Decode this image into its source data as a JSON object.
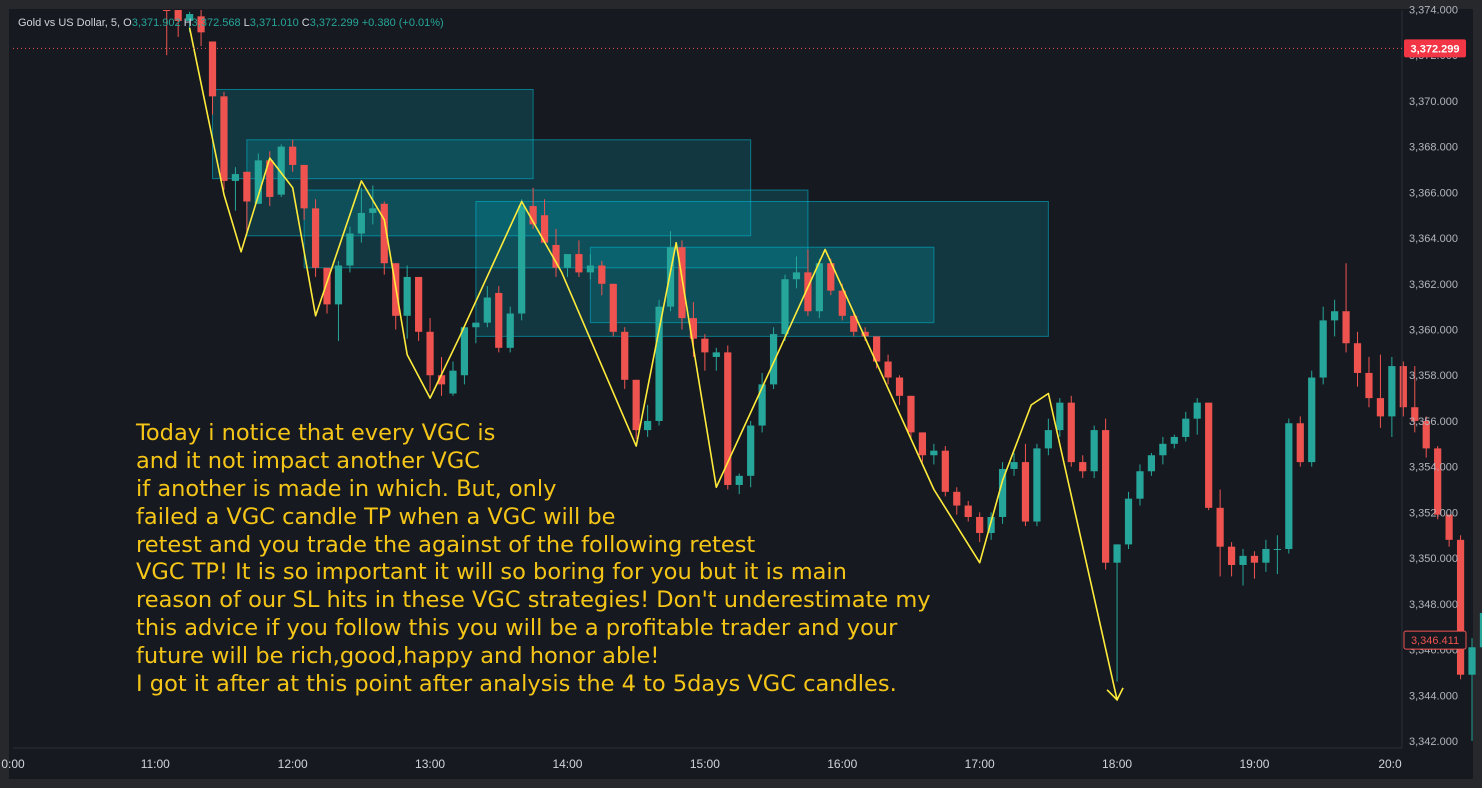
{
  "header": {
    "symbol": "Gold vs US Dollar, 5,",
    "open_label": "O",
    "open": "3,371.902",
    "high_label": "H",
    "high": "3,372.568",
    "low_label": "L",
    "low": "3,371.010",
    "close_label": "C",
    "close": "3,372.299",
    "change": "+0.380 (+0.01%)"
  },
  "colors": {
    "up": "#26a69a",
    "down": "#ef5350",
    "zigzag": "#ffeb3b",
    "zone": "#00bcd4",
    "background": "#161a20",
    "annotation": "#f5c518"
  },
  "price_tags": {
    "current": "3,372.299",
    "marker": "3,346.411"
  },
  "annotation": {
    "lines": [
      "Today i notice that every VGC is",
      "and it not impact another VGC",
      "if another is made in which. But, only",
      "failed a VGC candle TP when a VGC will be",
      "retest and you trade the against of the following retest",
      "VGC TP! It is so important it will so boring for you but it is main",
      "reason of our SL hits in these VGC strategies! Don't underestimate my",
      "this advice if you follow this you will be a profitable trader and your",
      "future will be rich,good,happy and honor able!",
      "I got it after at this point after analysis the 4 to 5days VGC candles."
    ]
  },
  "chart_data": {
    "type": "candlestick",
    "symbol": "Gold vs US Dollar",
    "timeframe": "5",
    "x_ticks": [
      "0:00",
      "11:00",
      "12:00",
      "13:00",
      "14:00",
      "15:00",
      "16:00",
      "17:00",
      "18:00",
      "19:00",
      "20:0"
    ],
    "y_ticks": [
      "3,342.000",
      "3,344.000",
      "3,346.000",
      "3,348.000",
      "3,350.000",
      "3,352.000",
      "3,354.000",
      "3,356.000",
      "3,358.000",
      "3,360.000",
      "3,362.000",
      "3,364.000",
      "3,366.000",
      "3,368.000",
      "3,370.000",
      "3,372.000",
      "3,374.000"
    ],
    "ylim": [
      3341.4,
      3374.3
    ],
    "xlim": [
      -1.0,
      110.0
    ],
    "x_unit": "5-minute bars, bar 0 = 10:00",
    "candles": [
      [
        13,
        3374.5,
        3375.2,
        3372.0,
        3374.0
      ],
      [
        14,
        3374.0,
        3374.4,
        3372.8,
        3373.5
      ],
      [
        15,
        3373.5,
        3373.9,
        3373.0,
        3373.8
      ],
      [
        16,
        3373.7,
        3374.0,
        3372.4,
        3373.0
      ],
      [
        17,
        3372.6,
        3372.6,
        3369.4,
        3370.2
      ],
      [
        18,
        3370.2,
        3370.4,
        3366.1,
        3366.5
      ],
      [
        19,
        3366.5,
        3367.1,
        3365.2,
        3366.8
      ],
      [
        20,
        3366.9,
        3366.9,
        3364.3,
        3365.6
      ],
      [
        21,
        3365.5,
        3367.7,
        3365.5,
        3367.4
      ],
      [
        22,
        3367.4,
        3367.8,
        3365.4,
        3365.8
      ],
      [
        23,
        3365.9,
        3368.1,
        3365.8,
        3368.0
      ],
      [
        24,
        3368.0,
        3368.3,
        3366.9,
        3367.2
      ],
      [
        25,
        3367.2,
        3367.2,
        3364.8,
        3365.3
      ],
      [
        26,
        3365.3,
        3365.7,
        3362.3,
        3362.7
      ],
      [
        27,
        3362.7,
        3362.7,
        3360.7,
        3361.1
      ],
      [
        28,
        3361.1,
        3363.0,
        3359.5,
        3362.8
      ],
      [
        29,
        3362.8,
        3364.5,
        3362.5,
        3364.2
      ],
      [
        30,
        3364.2,
        3366.2,
        3363.8,
        3365.1
      ],
      [
        31,
        3365.1,
        3366.3,
        3364.6,
        3365.3
      ],
      [
        32,
        3365.5,
        3365.6,
        3362.4,
        3362.9
      ],
      [
        33,
        3362.9,
        3362.9,
        3360.0,
        3360.6
      ],
      [
        34,
        3360.6,
        3362.8,
        3359.6,
        3362.3
      ],
      [
        35,
        3362.3,
        3362.3,
        3359.5,
        3359.9
      ],
      [
        36,
        3359.9,
        3360.5,
        3357.3,
        3358.0
      ],
      [
        37,
        3358.0,
        3358.8,
        3357.1,
        3357.6
      ],
      [
        38,
        3357.2,
        3358.6,
        3357.1,
        3358.2
      ],
      [
        39,
        3358.0,
        3360.1,
        3357.6,
        3360.1
      ],
      [
        40,
        3360.1,
        3360.3,
        3359.4,
        3360.3
      ],
      [
        41,
        3360.3,
        3361.9,
        3360.1,
        3361.4
      ],
      [
        42,
        3361.6,
        3361.9,
        3359.0,
        3359.2
      ],
      [
        43,
        3359.2,
        3361.0,
        3359.0,
        3360.7
      ],
      [
        44,
        3360.7,
        3365.7,
        3360.4,
        3365.4
      ],
      [
        45,
        3365.4,
        3366.2,
        3364.4,
        3364.6
      ],
      [
        46,
        3365.0,
        3365.7,
        3363.8,
        3363.8
      ],
      [
        47,
        3363.7,
        3364.4,
        3362.3,
        3362.7
      ],
      [
        48,
        3362.7,
        3363.3,
        3362.3,
        3363.3
      ],
      [
        49,
        3363.3,
        3363.9,
        3362.3,
        3362.5
      ],
      [
        50,
        3362.5,
        3363.3,
        3362.2,
        3362.8
      ],
      [
        51,
        3362.8,
        3363.0,
        3361.5,
        3362.0
      ],
      [
        52,
        3362.0,
        3362.0,
        3359.7,
        3359.9
      ],
      [
        53,
        3359.9,
        3360.1,
        3357.4,
        3357.8
      ],
      [
        54,
        3357.8,
        3357.8,
        3355.2,
        3355.6
      ],
      [
        55,
        3355.6,
        3356.7,
        3355.3,
        3356.0
      ],
      [
        56,
        3356.0,
        3361.3,
        3355.8,
        3361.0
      ],
      [
        57,
        3361.0,
        3364.3,
        3360.8,
        3363.6
      ],
      [
        58,
        3363.6,
        3363.9,
        3360.0,
        3360.5
      ],
      [
        59,
        3360.5,
        3361.2,
        3358.8,
        3359.6
      ],
      [
        60,
        3359.6,
        3359.8,
        3358.2,
        3359.0
      ],
      [
        61,
        3358.8,
        3359.2,
        3358.2,
        3359.0
      ],
      [
        62,
        3359.0,
        3359.3,
        3353.0,
        3353.2
      ],
      [
        63,
        3353.2,
        3353.7,
        3352.8,
        3353.6
      ],
      [
        64,
        3353.6,
        3356.0,
        3353.1,
        3355.8
      ],
      [
        65,
        3355.8,
        3358.1,
        3355.5,
        3357.6
      ],
      [
        66,
        3357.6,
        3360.1,
        3357.4,
        3359.8
      ],
      [
        67,
        3359.8,
        3362.4,
        3359.5,
        3362.2
      ],
      [
        68,
        3362.2,
        3363.2,
        3361.8,
        3362.5
      ],
      [
        69,
        3362.5,
        3363.5,
        3360.6,
        3360.8
      ],
      [
        70,
        3360.8,
        3363.1,
        3360.5,
        3362.9
      ],
      [
        71,
        3362.9,
        3363.1,
        3361.5,
        3361.7
      ],
      [
        72,
        3361.7,
        3362.0,
        3360.4,
        3360.6
      ],
      [
        73,
        3360.6,
        3360.8,
        3359.7,
        3359.9
      ],
      [
        74,
        3359.9,
        3360.1,
        3359.5,
        3359.7
      ],
      [
        75,
        3359.7,
        3359.7,
        3358.3,
        3358.6
      ],
      [
        76,
        3358.6,
        3358.9,
        3357.6,
        3357.9
      ],
      [
        77,
        3357.9,
        3358.0,
        3356.7,
        3357.1
      ],
      [
        78,
        3357.1,
        3357.1,
        3355.2,
        3355.5
      ],
      [
        79,
        3355.5,
        3355.5,
        3354.2,
        3354.5
      ],
      [
        80,
        3354.5,
        3355.0,
        3354.1,
        3354.7
      ],
      [
        81,
        3354.7,
        3354.9,
        3352.7,
        3352.9
      ],
      [
        82,
        3352.9,
        3353.1,
        3351.9,
        3352.3
      ],
      [
        83,
        3352.3,
        3352.5,
        3351.6,
        3351.8
      ],
      [
        84,
        3351.8,
        3352.0,
        3350.7,
        3351.1
      ],
      [
        85,
        3351.1,
        3352.0,
        3350.8,
        3351.8
      ],
      [
        86,
        3351.8,
        3354.2,
        3351.5,
        3353.9
      ],
      [
        87,
        3353.9,
        3354.6,
        3353.6,
        3354.2
      ],
      [
        88,
        3354.2,
        3355.0,
        3351.4,
        3351.6
      ],
      [
        89,
        3351.6,
        3355.0,
        3351.4,
        3354.8
      ],
      [
        90,
        3354.8,
        3356.1,
        3354.5,
        3355.6
      ],
      [
        91,
        3355.6,
        3357.0,
        3355.3,
        3356.8
      ],
      [
        92,
        3356.8,
        3357.1,
        3354.0,
        3354.2
      ],
      [
        93,
        3354.2,
        3354.5,
        3353.5,
        3353.8
      ],
      [
        94,
        3353.8,
        3355.8,
        3353.5,
        3355.6
      ],
      [
        95,
        3355.6,
        3356.1,
        3349.5,
        3349.8
      ],
      [
        96,
        3349.8,
        3350.6,
        3344.6,
        3350.6
      ],
      [
        97,
        3350.6,
        3352.9,
        3350.4,
        3352.6
      ],
      [
        98,
        3352.6,
        3354.1,
        3352.3,
        3353.8
      ],
      [
        99,
        3353.8,
        3354.6,
        3353.6,
        3354.5
      ],
      [
        100,
        3354.5,
        3355.3,
        3354.1,
        3355.0
      ],
      [
        101,
        3355.0,
        3355.4,
        3354.8,
        3355.3
      ],
      [
        102,
        3355.3,
        3356.4,
        3355.1,
        3356.1
      ],
      [
        103,
        3356.1,
        3357.0,
        3355.4,
        3356.8
      ],
      [
        104,
        3356.8,
        3356.8,
        3352.1,
        3352.2
      ],
      [
        105,
        3352.2,
        3353.0,
        3349.2,
        3350.5
      ],
      [
        106,
        3350.5,
        3350.7,
        3349.2,
        3349.7
      ],
      [
        107,
        3349.7,
        3350.4,
        3348.8,
        3350.1
      ],
      [
        108,
        3350.1,
        3350.3,
        3349.1,
        3349.8
      ],
      [
        109,
        3349.8,
        3350.8,
        3349.4,
        3350.4
      ],
      [
        110,
        3350.4,
        3351.0,
        3349.3,
        3350.4
      ],
      [
        111,
        3350.4,
        3356.1,
        3350.2,
        3355.9
      ],
      [
        112,
        3355.9,
        3356.2,
        3354.0,
        3354.2
      ],
      [
        113,
        3354.2,
        3358.2,
        3354.0,
        3357.9
      ],
      [
        114,
        3357.9,
        3361.0,
        3357.6,
        3360.4
      ],
      [
        115,
        3360.4,
        3361.3,
        3359.7,
        3360.8
      ],
      [
        116,
        3360.8,
        3362.9,
        3359.0,
        3359.4
      ],
      [
        117,
        3359.4,
        3359.9,
        3357.5,
        3358.1
      ],
      [
        118,
        3358.1,
        3358.8,
        3356.6,
        3357.0
      ],
      [
        119,
        3357.0,
        3358.9,
        3355.7,
        3356.2
      ],
      [
        120,
        3356.2,
        3358.8,
        3355.3,
        3358.4
      ],
      [
        121,
        3358.4,
        3358.6,
        3356.2,
        3356.6
      ],
      [
        122,
        3356.6,
        3358.4,
        3355.5,
        3356.0
      ],
      [
        123,
        3356.0,
        3356.2,
        3354.4,
        3354.8
      ],
      [
        124,
        3354.8,
        3354.9,
        3351.7,
        3351.9
      ],
      [
        125,
        3351.9,
        3351.9,
        3350.5,
        3350.8
      ],
      [
        126,
        3350.8,
        3351.0,
        3344.7,
        3344.9
      ],
      [
        127,
        3344.9,
        3346.5,
        3342.0,
        3346.1
      ],
      [
        128,
        3346.1,
        3347.9,
        3346.0,
        3347.6
      ],
      [
        129,
        3347.6,
        3348.6,
        3346.2,
        3347.1
      ],
      [
        130,
        3347.1,
        3347.3,
        3345.4,
        3346.6
      ],
      [
        131,
        3346.6,
        3347.5,
        3346.3,
        3346.4
      ]
    ],
    "zones": [
      {
        "from": 17,
        "to": 45,
        "top": 3370.5,
        "bottom": 3366.6
      },
      {
        "from": 20,
        "to": 64,
        "top": 3368.3,
        "bottom": 3364.1
      },
      {
        "from": 25,
        "to": 69,
        "top": 3366.1,
        "bottom": 3362.7
      },
      {
        "from": 40,
        "to": 90,
        "top": 3365.6,
        "bottom": 3359.7
      },
      {
        "from": 50,
        "to": 80,
        "top": 3363.6,
        "bottom": 3360.3
      }
    ],
    "zigzag": [
      [
        15,
        3373.2
      ],
      [
        18,
        3365.9
      ],
      [
        19.5,
        3363.4
      ],
      [
        22,
        3367.5
      ],
      [
        24,
        3366.2
      ],
      [
        26,
        3360.6
      ],
      [
        30,
        3366.5
      ],
      [
        32,
        3364.8
      ],
      [
        34,
        3358.9
      ],
      [
        36,
        3357.0
      ],
      [
        38.5,
        3359.6
      ],
      [
        44,
        3365.6
      ],
      [
        47.5,
        3362.5
      ],
      [
        54,
        3354.9
      ],
      [
        57.5,
        3363.8
      ],
      [
        61,
        3353.1
      ],
      [
        65.5,
        3358.0
      ],
      [
        70.5,
        3363.5
      ],
      [
        80,
        3353.0
      ],
      [
        84,
        3349.8
      ],
      [
        86,
        3353.4
      ],
      [
        88.5,
        3356.7
      ],
      [
        90,
        3357.2
      ],
      [
        96,
        3343.8
      ]
    ],
    "arrow_end": [
      96,
      3343.8
    ]
  }
}
